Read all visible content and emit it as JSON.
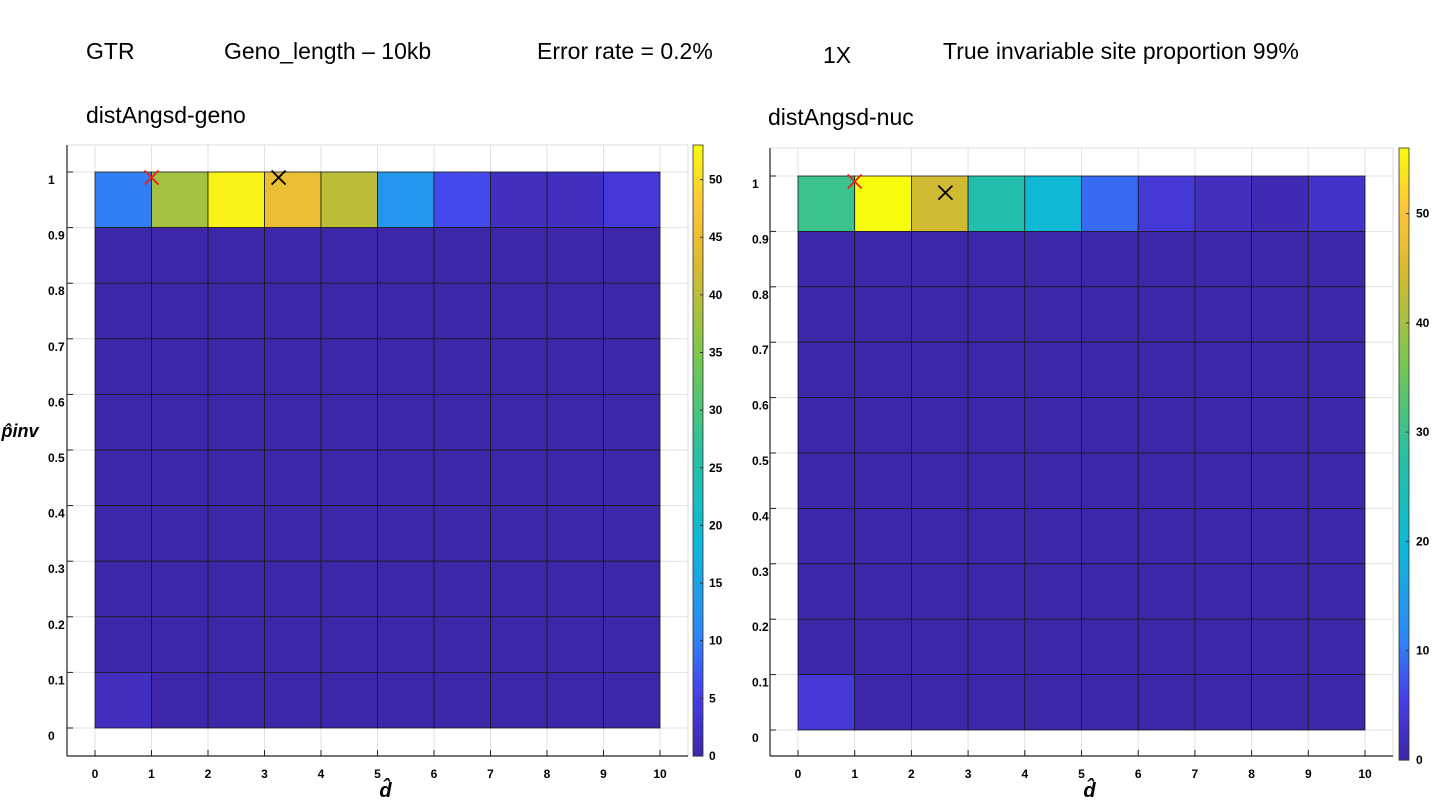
{
  "header": {
    "model": "GTR",
    "geno_length": "Geno_length – 10kb",
    "error_rate": "Error rate = 0.2%",
    "coverage": "1X",
    "true_inv": "True invariable site proportion 99%"
  },
  "chart_data": [
    {
      "type": "heatmap",
      "title": "distAngsd-geno",
      "xlabel": "d̂",
      "ylabel": "p̂inv",
      "x_ticks": [
        0,
        1,
        2,
        3,
        4,
        5,
        6,
        7,
        8,
        9,
        10
      ],
      "y_ticks": [
        0,
        0.1,
        0.2,
        0.3,
        0.4,
        0.5,
        0.6,
        0.7,
        0.8,
        0.9,
        1
      ],
      "colorbar_ticks": [
        0,
        5,
        10,
        15,
        20,
        25,
        30,
        35,
        40,
        45,
        50
      ],
      "clim": [
        0,
        53
      ],
      "grid": true,
      "rows": [
        {
          "y_range": [
            0.9,
            1.0
          ],
          "values": [
            10,
            38,
            52,
            45,
            40,
            13,
            6,
            2,
            2,
            4
          ]
        },
        {
          "y_range": [
            0.8,
            0.9
          ],
          "values": [
            0,
            0,
            0,
            0,
            0,
            0,
            0,
            0,
            0,
            0
          ]
        },
        {
          "y_range": [
            0.7,
            0.8
          ],
          "values": [
            0,
            0,
            0,
            0,
            0,
            0,
            0,
            0,
            0,
            0
          ]
        },
        {
          "y_range": [
            0.6,
            0.7
          ],
          "values": [
            0,
            0,
            0,
            0,
            0,
            0,
            0,
            0,
            0,
            0
          ]
        },
        {
          "y_range": [
            0.5,
            0.6
          ],
          "values": [
            0,
            0,
            0,
            0,
            0,
            0,
            0,
            0,
            0,
            0
          ]
        },
        {
          "y_range": [
            0.4,
            0.5
          ],
          "values": [
            0,
            0,
            0,
            0,
            0,
            0,
            0,
            0,
            0,
            0
          ]
        },
        {
          "y_range": [
            0.3,
            0.4
          ],
          "values": [
            0,
            0,
            0,
            0,
            0,
            0,
            0,
            0,
            0,
            0
          ]
        },
        {
          "y_range": [
            0.2,
            0.3
          ],
          "values": [
            0,
            0,
            0,
            0,
            0,
            0,
            0,
            0,
            0,
            0
          ]
        },
        {
          "y_range": [
            0.1,
            0.2
          ],
          "values": [
            0,
            0,
            0,
            0,
            0,
            0,
            0,
            0,
            0,
            0
          ]
        },
        {
          "y_range": [
            0.0,
            0.1
          ],
          "values": [
            2,
            0,
            0,
            0,
            0,
            0,
            0,
            0,
            0,
            0
          ]
        }
      ],
      "markers": [
        {
          "x": 1.0,
          "y": 0.99,
          "color": "#e8231c"
        },
        {
          "x": 3.25,
          "y": 0.99,
          "color": "#000000"
        }
      ]
    },
    {
      "type": "heatmap",
      "title": "distAngsd-nuc",
      "xlabel": "d̂",
      "ylabel": "",
      "x_ticks": [
        0,
        1,
        2,
        3,
        4,
        5,
        6,
        7,
        8,
        9,
        10
      ],
      "y_ticks": [
        0,
        0.1,
        0.2,
        0.3,
        0.4,
        0.5,
        0.6,
        0.7,
        0.8,
        0.9,
        1
      ],
      "colorbar_ticks": [
        0,
        10,
        20,
        30,
        40,
        50
      ],
      "clim": [
        0,
        56
      ],
      "grid": true,
      "rows": [
        {
          "y_range": [
            0.9,
            1.0
          ],
          "values": [
            30,
            56,
            44,
            26,
            20,
            9,
            4,
            2,
            1,
            3
          ]
        },
        {
          "y_range": [
            0.8,
            0.9
          ],
          "values": [
            0,
            0,
            0,
            0,
            0,
            0,
            0,
            0,
            0,
            0
          ]
        },
        {
          "y_range": [
            0.7,
            0.8
          ],
          "values": [
            0,
            0,
            0,
            0,
            0,
            0,
            0,
            0,
            0,
            0
          ]
        },
        {
          "y_range": [
            0.6,
            0.7
          ],
          "values": [
            0,
            0,
            0,
            0,
            0,
            0,
            0,
            0,
            0,
            0
          ]
        },
        {
          "y_range": [
            0.5,
            0.6
          ],
          "values": [
            0,
            0,
            0,
            0,
            0,
            0,
            0,
            0,
            0,
            0
          ]
        },
        {
          "y_range": [
            0.4,
            0.5
          ],
          "values": [
            0,
            0,
            0,
            0,
            0,
            0,
            0,
            0,
            0,
            0
          ]
        },
        {
          "y_range": [
            0.3,
            0.4
          ],
          "values": [
            0,
            0,
            0,
            0,
            0,
            0,
            0,
            0,
            0,
            0
          ]
        },
        {
          "y_range": [
            0.2,
            0.3
          ],
          "values": [
            0,
            0,
            0,
            0,
            0,
            0,
            0,
            0,
            0,
            0
          ]
        },
        {
          "y_range": [
            0.1,
            0.2
          ],
          "values": [
            0,
            0,
            0,
            0,
            0,
            0,
            0,
            0,
            0,
            0
          ]
        },
        {
          "y_range": [
            0.0,
            0.1
          ],
          "values": [
            4,
            0,
            0,
            0,
            0,
            0,
            0,
            0,
            0,
            0
          ]
        }
      ],
      "markers": [
        {
          "x": 1.0,
          "y": 0.99,
          "color": "#e8231c"
        },
        {
          "x": 2.6,
          "y": 0.97,
          "color": "#000000"
        }
      ]
    }
  ]
}
